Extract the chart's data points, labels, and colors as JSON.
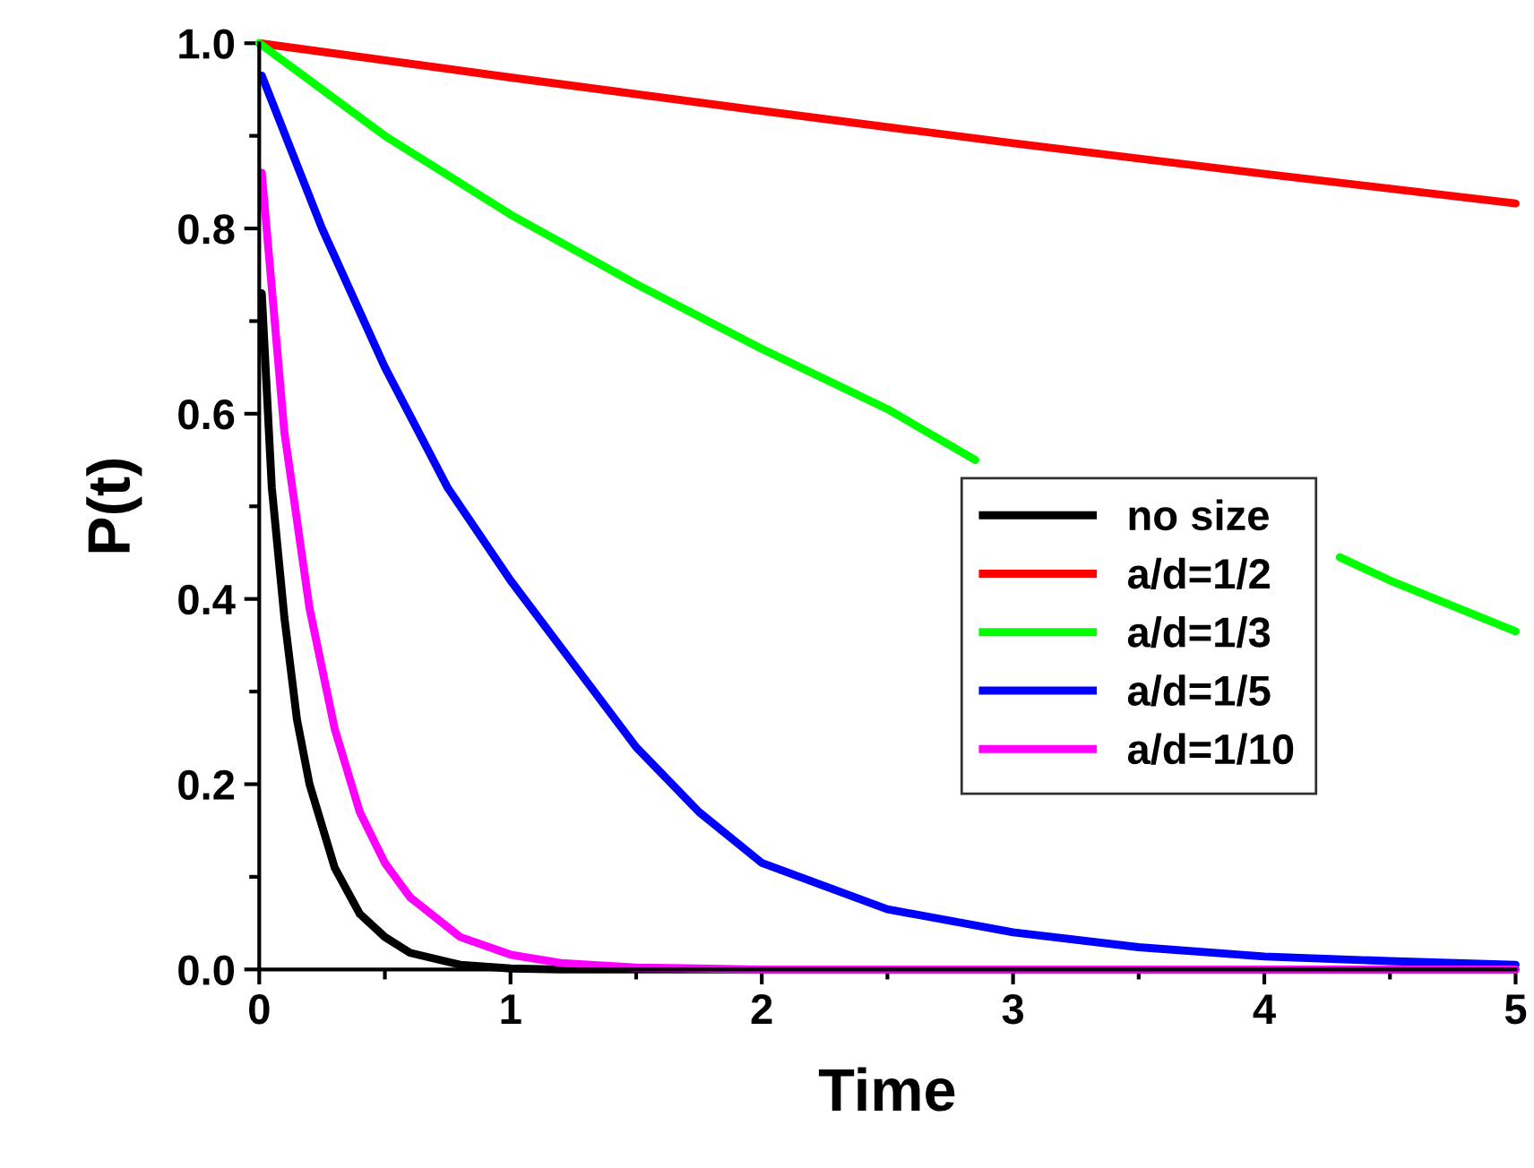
{
  "chart_data": {
    "type": "line",
    "xlabel": "Time",
    "ylabel": "P(t)",
    "xlim": [
      0,
      5
    ],
    "ylim": [
      0,
      1.0
    ],
    "xticks": [
      0,
      1,
      2,
      3,
      4,
      5
    ],
    "yticks": [
      {
        "value": 0,
        "label": "0.0"
      },
      0.2,
      0.4,
      0.6,
      0.8,
      {
        "value": 1,
        "label": "1.0"
      }
    ],
    "grid": false,
    "legend": "right",
    "marker": "none",
    "line_style": "solid",
    "series": [
      {
        "name": "no size",
        "color": "#000000",
        "x": [
          0.01,
          0.05,
          0.1,
          0.15,
          0.2,
          0.3,
          0.4,
          0.5,
          0.6,
          0.8,
          1.0,
          1.2,
          5
        ],
        "values": [
          0.73,
          0.52,
          0.38,
          0.27,
          0.2,
          0.11,
          0.06,
          0.035,
          0.018,
          0.005,
          0.001,
          0,
          0
        ]
      },
      {
        "name": "a/d=1/2",
        "color": "#ff0000",
        "x": [
          0,
          1,
          2,
          3,
          4,
          5
        ],
        "values": [
          1.0,
          0.963,
          0.927,
          0.892,
          0.859,
          0.827
        ]
      },
      {
        "name": "a/d=1/3",
        "color": "#00ff00",
        "x": [
          0,
          0.25,
          0.5,
          1,
          1.5,
          2,
          2.5,
          2.85,
          3,
          3.5,
          4,
          4.3,
          4.5,
          5
        ],
        "values": [
          1.0,
          0.95,
          0.9,
          0.815,
          0.74,
          0.67,
          0.605,
          0.55,
          null,
          null,
          null,
          0.445,
          0.42,
          0.365
        ]
      },
      {
        "name": "a/d=1/5",
        "color": "#0000ff",
        "x": [
          0.01,
          0.25,
          0.5,
          0.75,
          1.0,
          1.25,
          1.5,
          1.75,
          2.0,
          2.5,
          3,
          3.5,
          4,
          4.5,
          5
        ],
        "values": [
          0.965,
          0.8,
          0.65,
          0.52,
          0.42,
          0.33,
          0.24,
          0.17,
          0.115,
          0.065,
          0.04,
          0.024,
          0.014,
          0.009,
          0.005
        ]
      },
      {
        "name": "a/d=1/10",
        "color": "#ff00ff",
        "x": [
          0.01,
          0.1,
          0.2,
          0.3,
          0.4,
          0.5,
          0.6,
          0.8,
          1.0,
          1.2,
          1.5,
          2,
          5
        ],
        "values": [
          0.86,
          0.58,
          0.39,
          0.26,
          0.17,
          0.115,
          0.078,
          0.035,
          0.016,
          0.007,
          0.002,
          0,
          0
        ]
      }
    ]
  }
}
